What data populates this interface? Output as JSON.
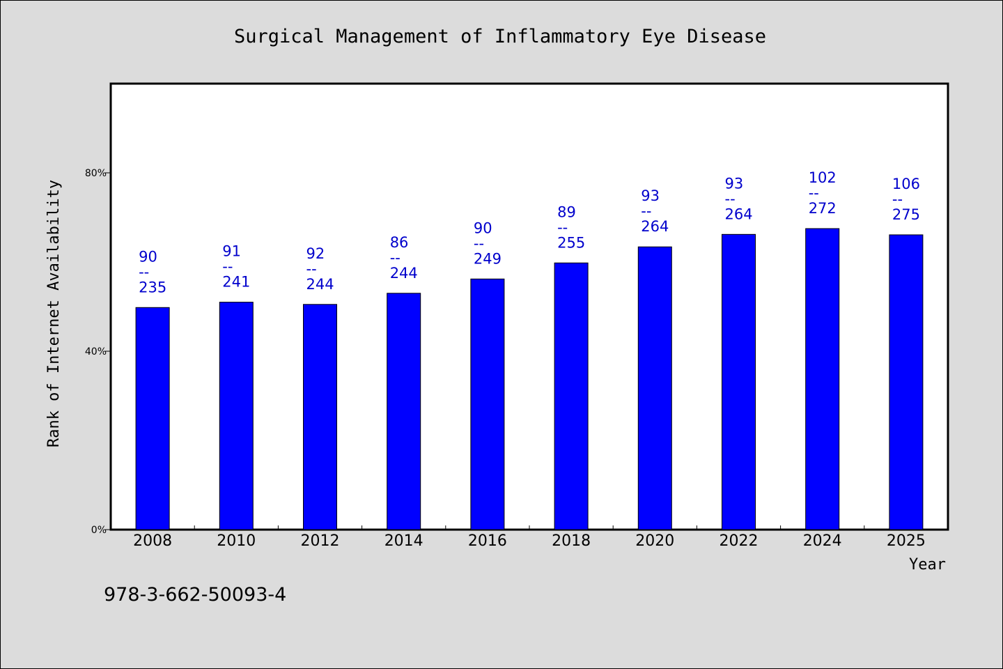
{
  "chart_data": {
    "type": "bar",
    "title": "Surgical Management of Inflammatory Eye Disease",
    "xlabel": "Year",
    "ylabel": "Rank of Internet Availability",
    "categories": [
      "2008",
      "2010",
      "2012",
      "2014",
      "2016",
      "2018",
      "2020",
      "2022",
      "2024",
      "2025"
    ],
    "values": [
      49.8,
      51.0,
      50.5,
      53.0,
      56.2,
      59.8,
      63.4,
      66.2,
      67.5,
      66.1
    ],
    "value_unit": "%",
    "data_labels": [
      {
        "top": "90",
        "sep": "--",
        "bottom": "235"
      },
      {
        "top": "91",
        "sep": "--",
        "bottom": "241"
      },
      {
        "top": "92",
        "sep": "--",
        "bottom": "244"
      },
      {
        "top": "86",
        "sep": "--",
        "bottom": "244"
      },
      {
        "top": "90",
        "sep": "--",
        "bottom": "249"
      },
      {
        "top": "89",
        "sep": "--",
        "bottom": "255"
      },
      {
        "top": "93",
        "sep": "--",
        "bottom": "264"
      },
      {
        "top": "93",
        "sep": "--",
        "bottom": "264"
      },
      {
        "top": "102",
        "sep": "--",
        "bottom": "272"
      },
      {
        "top": "106",
        "sep": "--",
        "bottom": "275"
      }
    ],
    "yticks": [
      0,
      40,
      80
    ],
    "ytick_labels": [
      "0%",
      "40%",
      "80%"
    ],
    "ylim": [
      0,
      100
    ],
    "grid": false,
    "legend": "none",
    "bar_color": "#0000ff",
    "label_color": "#0000cc"
  },
  "footer": {
    "isbn": "978-3-662-50093-4"
  }
}
